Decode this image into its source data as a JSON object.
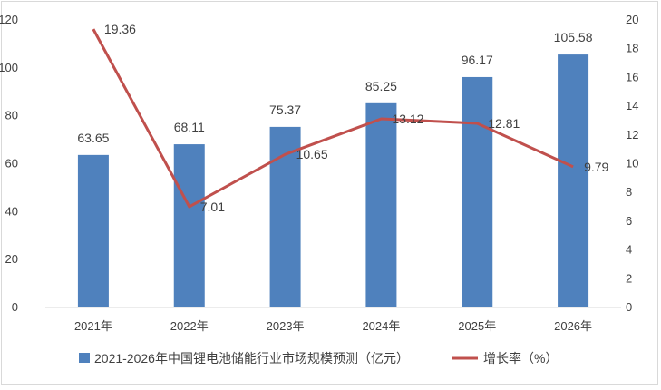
{
  "chart_data": {
    "type": "bar",
    "categories": [
      "2021年",
      "2022年",
      "2023年",
      "2024年",
      "2025年",
      "2026年"
    ],
    "series": [
      {
        "name": "2021-2026年中国锂电池储能行业市场规模预测（亿元）",
        "type": "bar",
        "axis": "left",
        "color": "#4f81bd",
        "values": [
          63.65,
          68.11,
          75.37,
          85.25,
          96.17,
          105.58
        ],
        "labels": [
          "63.65",
          "68.11",
          "75.37",
          "85.25",
          "96.17",
          "105.58"
        ]
      },
      {
        "name": "增长率（%）",
        "type": "line",
        "axis": "right",
        "color": "#c0504d",
        "values": [
          19.36,
          7.01,
          10.65,
          13.12,
          12.81,
          9.79
        ],
        "labels": [
          "19.36",
          "7.01",
          "10.65",
          "13.12",
          "12.81",
          "9.79"
        ]
      }
    ],
    "y_left": {
      "ylim": [
        0,
        120
      ],
      "ticks": [
        "0",
        "20",
        "40",
        "60",
        "80",
        "100",
        "120"
      ]
    },
    "y_right": {
      "ylim": [
        0,
        20
      ],
      "ticks": [
        "0",
        "2",
        "4",
        "6",
        "8",
        "10",
        "12",
        "14",
        "16",
        "18",
        "20"
      ]
    },
    "grid": false,
    "legend": "bottom"
  }
}
